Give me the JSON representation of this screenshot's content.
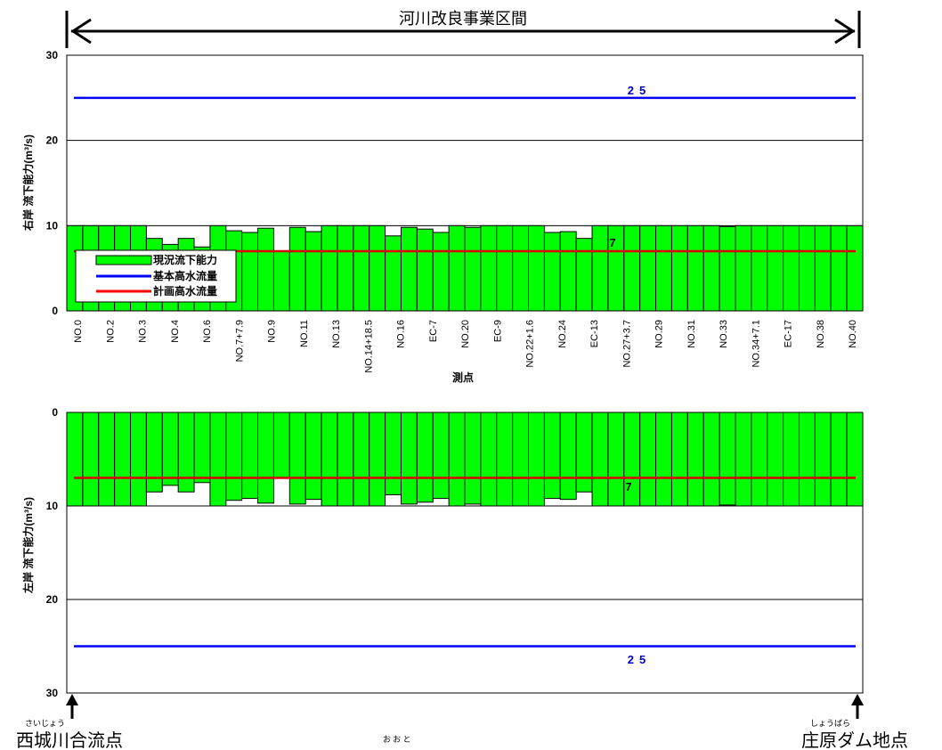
{
  "section": {
    "label": "河川改良事業区間"
  },
  "endpoints": {
    "left": {
      "furigana": "さいじょう",
      "label": "西城川合流点"
    },
    "right": {
      "furigana": "しょうばら",
      "label": "庄原ダム地点"
    }
  },
  "footer_text": "お お と",
  "legend": [
    {
      "label": "現況流下能力",
      "kind": "bar",
      "color": "#00ff00"
    },
    {
      "label": "基本高水流量",
      "kind": "line",
      "color": "#0000ff"
    },
    {
      "label": "計画高水流量",
      "kind": "line",
      "color": "#ff0000"
    }
  ],
  "colors": {
    "bar_fill": "#00ff00",
    "bar_stroke": "#000000",
    "basic_flow": "#0000ff",
    "plan_flow": "#dd0000",
    "annotation_blue": "#0000cc"
  },
  "chart_data": [
    {
      "type": "bar",
      "title": "",
      "ylabel": "右岸 流下能力(m³/s)",
      "xlabel": "測点",
      "ylim": [
        0,
        30
      ],
      "yticks": [
        0,
        10,
        20,
        30
      ],
      "grid": true,
      "legend_position": "bottom-left",
      "x_tick_labels": [
        "NO.0",
        "NO.2",
        "NO.3",
        "NO.4",
        "NO.6",
        "NO.7+7.9",
        "NO.9",
        "NO.11",
        "NO.13",
        "NO.14+18.5",
        "NO.16",
        "EC-7",
        "NO.20",
        "EC-9",
        "NO.22+1.6",
        "NO.24",
        "EC-13",
        "NO.27+3.7",
        "NO.29",
        "NO.31",
        "NO.33",
        "NO.34+7.1",
        "EC-17",
        "NO.38",
        "NO.40"
      ],
      "series": [
        {
          "name": "現況流下能力",
          "values": [
            10,
            10,
            10,
            10,
            10,
            8.5,
            7.8,
            8.5,
            7.5,
            10,
            9.4,
            9.2,
            9.7,
            7,
            9.8,
            9.3,
            10,
            10,
            10,
            10,
            8.8,
            9.8,
            9.6,
            9.2,
            10,
            9.8,
            10,
            10,
            10,
            10,
            9.2,
            9.3,
            8.5,
            10,
            10,
            10,
            10,
            10,
            10,
            10,
            10,
            9.9,
            10,
            10,
            10,
            10,
            10,
            10,
            10,
            10
          ]
        },
        {
          "name": "基本高水流量",
          "values": [
            25
          ]
        },
        {
          "name": "計画高水流量",
          "values": [
            7
          ]
        }
      ],
      "annotations": [
        "25",
        "7"
      ]
    },
    {
      "type": "bar",
      "title": "",
      "ylabel": "左岸 流下能力(m³/s)",
      "ylim": [
        0,
        30
      ],
      "yticks": [
        0,
        10,
        20,
        30
      ],
      "inverted": true,
      "grid": true,
      "series": [
        {
          "name": "現況流下能力",
          "values": [
            10,
            10,
            10,
            10,
            10,
            8.5,
            7.8,
            8.5,
            7.5,
            10,
            9.4,
            9.2,
            9.7,
            7,
            9.8,
            9.3,
            10,
            10,
            10,
            10,
            8.8,
            9.8,
            9.6,
            9.2,
            10,
            9.8,
            10,
            10,
            10,
            10,
            9.2,
            9.3,
            8.5,
            10,
            10,
            10,
            10,
            10,
            10,
            10,
            10,
            9.9,
            10,
            10,
            10,
            10,
            10,
            10,
            10,
            10
          ]
        },
        {
          "name": "基本高水流量",
          "values": [
            25
          ]
        },
        {
          "name": "計画高水流量",
          "values": [
            7
          ]
        }
      ],
      "annotations": [
        "25",
        "7"
      ]
    }
  ]
}
